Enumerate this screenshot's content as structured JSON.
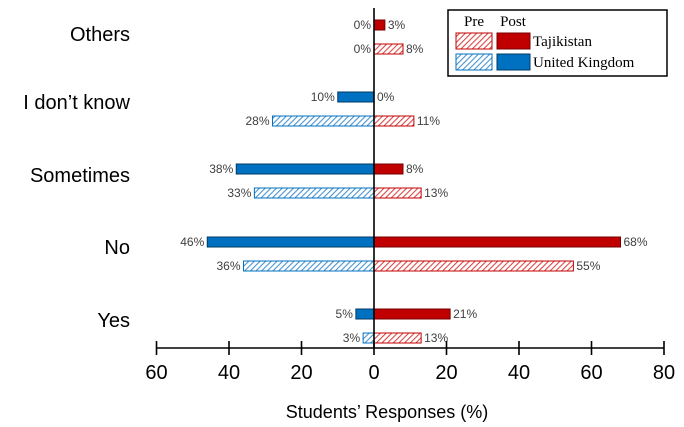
{
  "chart_data": {
    "type": "bar",
    "orientation": "horizontal",
    "categories": [
      "Others",
      "I don’t know",
      "Sometimes",
      "No",
      "Yes"
    ],
    "series": [
      {
        "name": "Tajikistan",
        "phase": "Post",
        "side": "right",
        "values": [
          3,
          0,
          8,
          68,
          21
        ],
        "labels": [
          "3%",
          "0%",
          "8%",
          "68%",
          "21%"
        ]
      },
      {
        "name": "Tajikistan",
        "phase": "Pre",
        "side": "right",
        "values": [
          8,
          11,
          13,
          55,
          13
        ],
        "labels": [
          "8%",
          "11%",
          "13%",
          "55%",
          "13%"
        ]
      },
      {
        "name": "United Kingdom",
        "phase": "Post",
        "side": "left",
        "values": [
          0,
          10,
          38,
          46,
          5
        ],
        "labels": [
          "0%",
          "10%",
          "38%",
          "46%",
          "5%"
        ]
      },
      {
        "name": "United Kingdom",
        "phase": "Pre",
        "side": "left",
        "values": [
          0,
          28,
          33,
          36,
          3
        ],
        "labels": [
          "0%",
          "28%",
          "33%",
          "36%",
          "3%"
        ]
      }
    ],
    "xlabel": "Students’ Responses (%)",
    "xlim": [
      -60,
      80
    ],
    "xticks": [
      -60,
      -40,
      -20,
      0,
      20,
      40,
      60,
      80
    ],
    "xtick_labels": [
      "60",
      "40",
      "20",
      "0",
      "20",
      "40",
      "60",
      "80"
    ],
    "legend": {
      "placement": "top-right",
      "headers": [
        "Pre",
        "Post"
      ],
      "entries": [
        "Tajikistan",
        "United Kingdom"
      ]
    },
    "colors": {
      "tajikistan": "#c00000",
      "tajikistan_hatch": "#e06060",
      "uk": "#0070c0",
      "uk_hatch": "#5aa0d8"
    }
  }
}
